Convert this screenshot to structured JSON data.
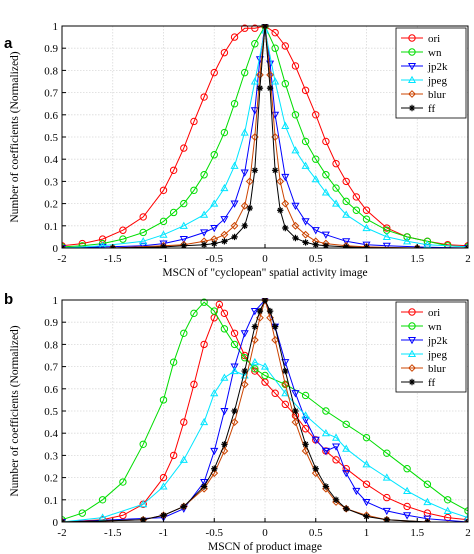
{
  "header_fragment": "",
  "chart_data": [
    {
      "type": "line",
      "panel_label": "a",
      "title": "",
      "xlabel": "MSCN of \"cyclopean\" spatial activity image",
      "ylabel": "Number of coefficients (Normalized)",
      "xlim": [
        -2,
        2
      ],
      "ylim": [
        0,
        1
      ],
      "xticks": [
        "-2",
        "-1.5",
        "-1",
        "-0.5",
        "0",
        "0.5",
        "1",
        "1.5",
        "2"
      ],
      "yticks": [
        "0",
        "0.1",
        "0.2",
        "0.3",
        "0.4",
        "0.5",
        "0.6",
        "0.7",
        "0.8",
        "0.9",
        "1"
      ],
      "grid": true,
      "legend_position": "top-right",
      "series": [
        {
          "name": "ori",
          "color": "#ff0000",
          "marker": "circle",
          "x": [
            -2.0,
            -1.8,
            -1.6,
            -1.4,
            -1.2,
            -1.0,
            -0.9,
            -0.8,
            -0.7,
            -0.6,
            -0.5,
            -0.4,
            -0.3,
            -0.2,
            -0.1,
            0.0,
            0.1,
            0.2,
            0.3,
            0.4,
            0.5,
            0.6,
            0.7,
            0.8,
            0.9,
            1.0,
            1.2,
            1.4,
            1.6,
            1.8,
            2.0
          ],
          "y": [
            0.01,
            0.02,
            0.04,
            0.08,
            0.14,
            0.26,
            0.35,
            0.45,
            0.57,
            0.68,
            0.79,
            0.88,
            0.95,
            0.99,
            0.99,
            1.0,
            0.97,
            0.91,
            0.82,
            0.71,
            0.6,
            0.48,
            0.38,
            0.3,
            0.23,
            0.17,
            0.09,
            0.05,
            0.03,
            0.015,
            0.01
          ]
        },
        {
          "name": "wn",
          "color": "#00dd00",
          "marker": "circle",
          "x": [
            -2.0,
            -1.8,
            -1.6,
            -1.4,
            -1.2,
            -1.0,
            -0.9,
            -0.8,
            -0.7,
            -0.6,
            -0.5,
            -0.4,
            -0.3,
            -0.2,
            -0.1,
            0.0,
            0.1,
            0.2,
            0.3,
            0.4,
            0.5,
            0.6,
            0.7,
            0.8,
            0.9,
            1.0,
            1.2,
            1.4,
            1.6,
            1.8,
            2.0
          ],
          "y": [
            0.005,
            0.01,
            0.02,
            0.04,
            0.07,
            0.12,
            0.16,
            0.2,
            0.26,
            0.33,
            0.42,
            0.52,
            0.65,
            0.79,
            0.92,
            1.0,
            0.9,
            0.74,
            0.6,
            0.48,
            0.4,
            0.33,
            0.27,
            0.21,
            0.17,
            0.13,
            0.08,
            0.05,
            0.03,
            0.01,
            0.005
          ]
        },
        {
          "name": "jp2k",
          "color": "#0000ff",
          "marker": "triangle-down",
          "x": [
            -2.0,
            -1.6,
            -1.2,
            -1.0,
            -0.8,
            -0.6,
            -0.5,
            -0.4,
            -0.3,
            -0.2,
            -0.1,
            -0.05,
            0.0,
            0.05,
            0.1,
            0.2,
            0.3,
            0.4,
            0.5,
            0.6,
            0.8,
            1.0,
            1.2,
            1.6,
            2.0
          ],
          "y": [
            0.0,
            0.005,
            0.01,
            0.02,
            0.04,
            0.07,
            0.09,
            0.13,
            0.2,
            0.34,
            0.62,
            0.85,
            1.0,
            0.83,
            0.6,
            0.32,
            0.19,
            0.12,
            0.08,
            0.06,
            0.03,
            0.015,
            0.01,
            0.003,
            0.0
          ]
        },
        {
          "name": "jpeg",
          "color": "#00e5ff",
          "marker": "triangle-up",
          "x": [
            -2.0,
            -1.6,
            -1.2,
            -1.0,
            -0.8,
            -0.6,
            -0.5,
            -0.4,
            -0.3,
            -0.2,
            -0.1,
            0.0,
            0.1,
            0.2,
            0.3,
            0.4,
            0.5,
            0.6,
            0.7,
            0.8,
            1.0,
            1.2,
            1.4,
            1.6,
            2.0
          ],
          "y": [
            0.0,
            0.01,
            0.03,
            0.06,
            0.1,
            0.15,
            0.2,
            0.27,
            0.37,
            0.52,
            0.75,
            0.98,
            0.75,
            0.55,
            0.44,
            0.37,
            0.31,
            0.25,
            0.2,
            0.15,
            0.09,
            0.05,
            0.03,
            0.015,
            0.005
          ]
        },
        {
          "name": "blur",
          "color": "#cc4400",
          "marker": "diamond",
          "x": [
            -2.0,
            -1.5,
            -1.0,
            -0.8,
            -0.6,
            -0.5,
            -0.4,
            -0.3,
            -0.2,
            -0.15,
            -0.1,
            -0.05,
            0.0,
            0.05,
            0.1,
            0.15,
            0.2,
            0.3,
            0.4,
            0.5,
            0.6,
            0.8,
            1.0,
            1.5,
            2.0
          ],
          "y": [
            0.0,
            0.0,
            0.01,
            0.015,
            0.03,
            0.04,
            0.06,
            0.1,
            0.19,
            0.3,
            0.5,
            0.78,
            1.0,
            0.78,
            0.5,
            0.3,
            0.2,
            0.1,
            0.06,
            0.03,
            0.02,
            0.01,
            0.005,
            0.0,
            0.0
          ]
        },
        {
          "name": "ff",
          "color": "#000000",
          "marker": "star",
          "x": [
            -2.0,
            -1.5,
            -1.0,
            -0.8,
            -0.6,
            -0.5,
            -0.4,
            -0.3,
            -0.2,
            -0.15,
            -0.1,
            -0.05,
            0.0,
            0.05,
            0.1,
            0.15,
            0.2,
            0.3,
            0.4,
            0.5,
            0.6,
            0.8,
            1.0,
            1.5,
            2.0
          ],
          "y": [
            0.0,
            0.0,
            0.005,
            0.01,
            0.015,
            0.02,
            0.03,
            0.05,
            0.1,
            0.18,
            0.35,
            0.72,
            1.0,
            0.72,
            0.35,
            0.17,
            0.09,
            0.045,
            0.025,
            0.015,
            0.01,
            0.005,
            0.002,
            0.0,
            0.0
          ]
        }
      ]
    },
    {
      "type": "line",
      "panel_label": "b",
      "title": "",
      "xlabel": "MSCN of product image",
      "ylabel": "Number of coefficients (Normalized)",
      "xlim": [
        -2,
        2
      ],
      "ylim": [
        0,
        1
      ],
      "xticks": [
        "-2",
        "-1.5",
        "-1",
        "-0.5",
        "0",
        "0.5",
        "1",
        "1.5",
        "2"
      ],
      "yticks": [
        "0",
        "0.1",
        "0.2",
        "0.3",
        "0.4",
        "0.5",
        "0.6",
        "0.7",
        "0.8",
        "0.9",
        "1"
      ],
      "grid": true,
      "legend_position": "top-right",
      "series": [
        {
          "name": "ori",
          "color": "#ff0000",
          "marker": "circle",
          "x": [
            -2.0,
            -1.6,
            -1.4,
            -1.2,
            -1.0,
            -0.9,
            -0.8,
            -0.7,
            -0.6,
            -0.5,
            -0.45,
            -0.4,
            -0.3,
            -0.2,
            -0.1,
            0.0,
            0.1,
            0.2,
            0.3,
            0.4,
            0.5,
            0.6,
            0.7,
            0.8,
            1.0,
            1.2,
            1.4,
            1.6,
            1.8,
            2.0
          ],
          "y": [
            0.0,
            0.01,
            0.03,
            0.08,
            0.2,
            0.3,
            0.45,
            0.62,
            0.8,
            0.92,
            0.98,
            0.94,
            0.85,
            0.75,
            0.68,
            0.63,
            0.58,
            0.53,
            0.48,
            0.42,
            0.37,
            0.32,
            0.28,
            0.24,
            0.17,
            0.11,
            0.07,
            0.04,
            0.02,
            0.01
          ]
        },
        {
          "name": "wn",
          "color": "#00dd00",
          "marker": "circle",
          "x": [
            -2.0,
            -1.8,
            -1.6,
            -1.4,
            -1.2,
            -1.0,
            -0.9,
            -0.8,
            -0.7,
            -0.6,
            -0.5,
            -0.4,
            -0.3,
            -0.2,
            -0.1,
            0.0,
            0.2,
            0.4,
            0.6,
            0.8,
            1.0,
            1.2,
            1.4,
            1.6,
            1.8,
            2.0
          ],
          "y": [
            0.01,
            0.04,
            0.1,
            0.18,
            0.35,
            0.55,
            0.72,
            0.85,
            0.94,
            0.99,
            0.95,
            0.87,
            0.8,
            0.74,
            0.69,
            0.66,
            0.62,
            0.57,
            0.5,
            0.44,
            0.38,
            0.31,
            0.24,
            0.17,
            0.1,
            0.05
          ]
        },
        {
          "name": "jp2k",
          "color": "#0000ff",
          "marker": "triangle-down",
          "x": [
            -2.0,
            -1.0,
            -0.8,
            -0.6,
            -0.5,
            -0.4,
            -0.3,
            -0.2,
            -0.1,
            0.0,
            0.1,
            0.2,
            0.3,
            0.4,
            0.5,
            0.6,
            0.7,
            0.8,
            0.9,
            1.0,
            1.2,
            1.4,
            1.6,
            2.0
          ],
          "y": [
            0.0,
            0.02,
            0.06,
            0.18,
            0.32,
            0.5,
            0.7,
            0.85,
            0.95,
            1.0,
            0.88,
            0.72,
            0.58,
            0.46,
            0.37,
            0.32,
            0.34,
            0.22,
            0.14,
            0.09,
            0.05,
            0.03,
            0.015,
            0.0
          ]
        },
        {
          "name": "jpeg",
          "color": "#00e5ff",
          "marker": "triangle-up",
          "x": [
            -2.0,
            -1.6,
            -1.2,
            -1.0,
            -0.8,
            -0.6,
            -0.5,
            -0.4,
            -0.3,
            -0.2,
            -0.1,
            0.0,
            0.2,
            0.4,
            0.6,
            0.7,
            0.8,
            1.0,
            1.2,
            1.4,
            1.6,
            1.8,
            2.0
          ],
          "y": [
            0.0,
            0.02,
            0.08,
            0.16,
            0.28,
            0.45,
            0.58,
            0.65,
            0.68,
            0.66,
            0.72,
            0.7,
            0.58,
            0.48,
            0.4,
            0.38,
            0.33,
            0.26,
            0.2,
            0.14,
            0.09,
            0.05,
            0.02
          ]
        },
        {
          "name": "blur",
          "color": "#cc4400",
          "marker": "diamond",
          "x": [
            -2.0,
            -1.2,
            -1.0,
            -0.8,
            -0.6,
            -0.5,
            -0.4,
            -0.3,
            -0.2,
            -0.1,
            -0.05,
            0.0,
            0.05,
            0.1,
            0.2,
            0.3,
            0.4,
            0.5,
            0.6,
            0.7,
            0.8,
            1.0,
            1.2,
            1.6,
            2.0
          ],
          "y": [
            0.0,
            0.01,
            0.03,
            0.07,
            0.15,
            0.22,
            0.32,
            0.45,
            0.62,
            0.82,
            0.92,
            1.0,
            0.92,
            0.82,
            0.62,
            0.45,
            0.32,
            0.22,
            0.15,
            0.09,
            0.06,
            0.03,
            0.01,
            0.0,
            0.0
          ]
        },
        {
          "name": "ff",
          "color": "#000000",
          "marker": "star",
          "x": [
            -2.0,
            -1.2,
            -1.0,
            -0.8,
            -0.6,
            -0.5,
            -0.4,
            -0.3,
            -0.2,
            -0.1,
            -0.05,
            0.0,
            0.05,
            0.1,
            0.2,
            0.3,
            0.4,
            0.5,
            0.6,
            0.7,
            0.8,
            1.0,
            1.2,
            1.6,
            2.0
          ],
          "y": [
            0.0,
            0.01,
            0.03,
            0.07,
            0.16,
            0.24,
            0.35,
            0.5,
            0.68,
            0.88,
            0.95,
            1.0,
            0.95,
            0.88,
            0.68,
            0.5,
            0.35,
            0.24,
            0.16,
            0.1,
            0.06,
            0.025,
            0.01,
            0.0,
            0.0
          ]
        }
      ]
    }
  ]
}
